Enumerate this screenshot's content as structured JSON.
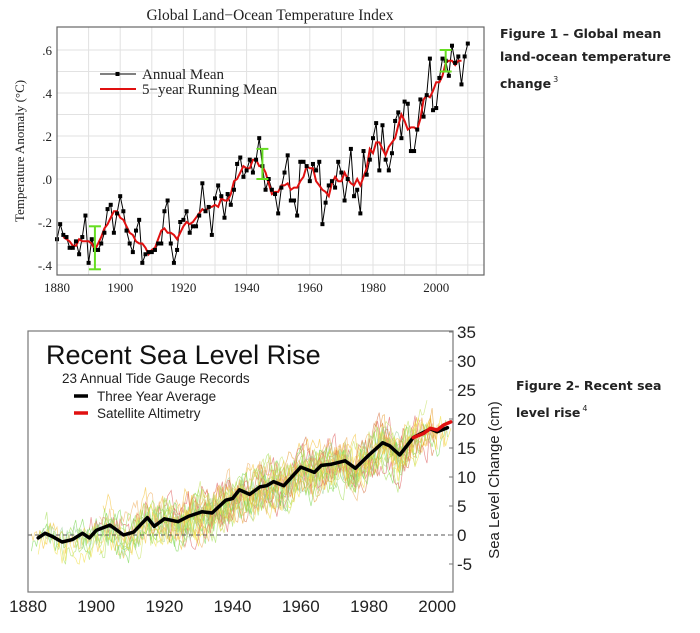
{
  "captions": {
    "figure1": {
      "text": "Figure 1 – Global mean land-ocean temperature change",
      "lines": [
        "Figure 1 – Global mean",
        "land-ocean temperature",
        "change"
      ],
      "ref": "3"
    },
    "figure2": {
      "text": "Figure 2- Recent sea level rise",
      "lines": [
        "Figure 2- Recent sea",
        "level rise"
      ],
      "ref": "4"
    }
  },
  "chart_data": [
    {
      "type": "line",
      "title": "Global Land−Ocean Temperature Index",
      "xlabel": "",
      "ylabel": "Temperature Anomaly (°C)",
      "xlim": [
        1880,
        2015
      ],
      "ylim": [
        -0.45,
        0.7
      ],
      "xticks": [
        "1880",
        "1900",
        "1920",
        "1940",
        "1960",
        "1980",
        "2000"
      ],
      "yticks": [
        ".6",
        ".4",
        ".2",
        ".0",
        "-.2",
        "-.4"
      ],
      "grid": true,
      "legend_placement": "top-left",
      "series": [
        {
          "name": "Annual Mean",
          "color": "#000000",
          "marker": "square",
          "x_start": 1880,
          "values": [
            -0.28,
            -0.21,
            -0.26,
            -0.27,
            -0.32,
            -0.32,
            -0.29,
            -0.35,
            -0.27,
            -0.17,
            -0.39,
            -0.28,
            -0.33,
            -0.33,
            -0.3,
            -0.25,
            -0.14,
            -0.12,
            -0.25,
            -0.16,
            -0.08,
            -0.15,
            -0.24,
            -0.3,
            -0.34,
            -0.24,
            -0.19,
            -0.39,
            -0.35,
            -0.34,
            -0.34,
            -0.33,
            -0.3,
            -0.3,
            -0.15,
            -0.1,
            -0.3,
            -0.39,
            -0.33,
            -0.2,
            -0.19,
            -0.15,
            -0.25,
            -0.22,
            -0.22,
            -0.17,
            -0.02,
            -0.15,
            -0.13,
            -0.26,
            -0.09,
            -0.03,
            -0.08,
            -0.18,
            -0.07,
            -0.12,
            -0.05,
            0.07,
            0.1,
            0.01,
            0.04,
            0.09,
            0.03,
            0.09,
            0.19,
            0.06,
            -0.05,
            0.0,
            -0.05,
            -0.07,
            -0.16,
            -0.04,
            0.03,
            0.11,
            -0.1,
            -0.1,
            -0.17,
            0.08,
            0.08,
            0.06,
            -0.01,
            0.07,
            0.04,
            0.08,
            -0.21,
            -0.11,
            -0.03,
            -0.01,
            -0.04,
            0.08,
            0.03,
            -0.1,
            0.0,
            0.14,
            -0.08,
            -0.05,
            -0.16,
            0.13,
            0.02,
            0.09,
            0.19,
            0.26,
            0.04,
            0.25,
            0.09,
            0.04,
            0.12,
            0.27,
            0.31,
            0.19,
            0.36,
            0.35,
            0.13,
            0.13,
            0.23,
            0.37,
            0.29,
            0.39,
            0.56,
            0.32,
            0.33,
            0.47,
            0.56,
            0.55,
            0.48,
            0.62,
            0.54,
            0.57,
            0.44,
            0.57,
            0.63
          ]
        },
        {
          "name": "5−year Running Mean",
          "color": "#e01010",
          "x_start": 1882,
          "values": [
            -0.27,
            -0.28,
            -0.29,
            -0.31,
            -0.31,
            -0.28,
            -0.29,
            -0.29,
            -0.29,
            -0.3,
            -0.33,
            -0.3,
            -0.27,
            -0.23,
            -0.21,
            -0.18,
            -0.15,
            -0.15,
            -0.18,
            -0.19,
            -0.22,
            -0.25,
            -0.26,
            -0.29,
            -0.3,
            -0.3,
            -0.32,
            -0.35,
            -0.33,
            -0.32,
            -0.28,
            -0.24,
            -0.23,
            -0.25,
            -0.25,
            -0.26,
            -0.28,
            -0.25,
            -0.22,
            -0.2,
            -0.21,
            -0.2,
            -0.18,
            -0.16,
            -0.14,
            -0.15,
            -0.13,
            -0.13,
            -0.12,
            -0.13,
            -0.09,
            -0.1,
            -0.1,
            -0.07,
            -0.01,
            0.0,
            0.03,
            0.06,
            0.05,
            0.05,
            0.09,
            0.09,
            0.06,
            0.06,
            0.03,
            -0.02,
            -0.07,
            -0.06,
            -0.06,
            -0.03,
            -0.03,
            -0.02,
            -0.05,
            -0.04,
            -0.04,
            -0.01,
            0.01,
            0.06,
            0.05,
            0.05,
            -0.01,
            -0.03,
            -0.05,
            -0.06,
            -0.08,
            -0.02,
            0.01,
            -0.01,
            -0.01,
            0.03,
            0.0,
            -0.02,
            -0.03,
            0.0,
            -0.03,
            0.01,
            0.05,
            0.14,
            0.12,
            0.17,
            0.17,
            0.14,
            0.11,
            0.15,
            0.17,
            0.19,
            0.25,
            0.3,
            0.27,
            0.23,
            0.24,
            0.24,
            0.23,
            0.28,
            0.37,
            0.39,
            0.38,
            0.41,
            0.45,
            0.45,
            0.48,
            0.54,
            0.55,
            0.55,
            0.53,
            0.55,
            0.55
          ]
        }
      ],
      "error_bars": {
        "color": "#66dd22",
        "items": [
          {
            "x": 1892,
            "low": -0.42,
            "high": -0.22
          },
          {
            "x": 1945,
            "low": 0.0,
            "high": 0.14
          },
          {
            "x": 2003,
            "low": 0.5,
            "high": 0.6
          }
        ]
      }
    },
    {
      "type": "line",
      "title": "Recent Sea Level Rise",
      "subtitle": "23 Annual Tide Gauge Records",
      "xlabel": "",
      "ylabel": "Sea Level Change (cm)",
      "xlim": [
        1880,
        2005
      ],
      "ylim": [
        -10,
        35
      ],
      "xticks": [
        "1880",
        "1900",
        "1920",
        "1940",
        "1960",
        "1980",
        "2000"
      ],
      "yticks": [
        "35",
        "30",
        "25",
        "20",
        "15",
        "10",
        "5",
        "0",
        "-5"
      ],
      "y_axis_side": "right",
      "zero_line": "dashed",
      "grid": false,
      "legend_placement": "top-left",
      "tide_gauge_records": {
        "count": 23,
        "colors": [
          "#7ed957",
          "#a8e05f",
          "#f2e04b",
          "#f5c542",
          "#e8a33c",
          "#d9784a",
          "#e06666",
          "#9fd3a0",
          "#c9e36b",
          "#f0b46a"
        ]
      },
      "series": [
        {
          "name": "Three Year Average",
          "color": "#000000",
          "x": [
            1883,
            1885,
            1887,
            1890,
            1893,
            1896,
            1898,
            1900,
            1904,
            1908,
            1911,
            1915,
            1917,
            1920,
            1924,
            1927,
            1931,
            1934,
            1938,
            1940,
            1942,
            1945,
            1948,
            1950,
            1952,
            1955,
            1960,
            1964,
            1966,
            1969,
            1973,
            1976,
            1980,
            1984,
            1986,
            1989,
            1993,
            1998,
            2000,
            2003
          ],
          "values": [
            -0.5,
            0.3,
            -0.2,
            -1.2,
            -0.8,
            0.3,
            -0.5,
            0.8,
            1.7,
            0.0,
            0.5,
            3.0,
            1.5,
            2.8,
            2.3,
            3.2,
            4.0,
            3.8,
            6.0,
            6.3,
            7.8,
            7.0,
            8.3,
            8.5,
            9.2,
            8.5,
            11.7,
            10.8,
            12.0,
            12.2,
            12.8,
            11.5,
            13.8,
            15.9,
            15.4,
            13.8,
            16.8,
            18.3,
            17.8,
            18.5
          ]
        },
        {
          "name": "Satellite Altimetry",
          "color": "#e01010",
          "x": [
            1993,
            1996,
            1998,
            2000,
            2002,
            2004
          ],
          "values": [
            16.8,
            17.5,
            18.4,
            18.1,
            19.0,
            19.5
          ]
        }
      ]
    }
  ]
}
